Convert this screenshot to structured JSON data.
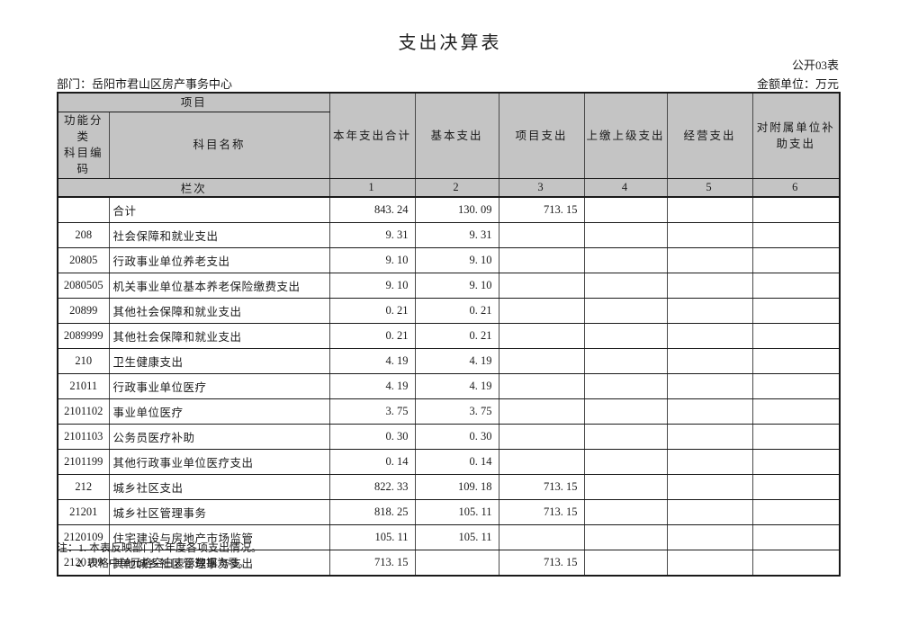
{
  "page": {
    "title": "支出决算表",
    "form_number": "公开03表",
    "department": "部门：岳阳市君山区房产事务中心",
    "unit": "金额单位：万元"
  },
  "table": {
    "group_header": "项目",
    "code_header": "功能分类\n科目编码",
    "name_header": "科目名称",
    "columns": [
      "本年支出合计",
      "基本支出",
      "项目支出",
      "上缴上级支出",
      "经营支出",
      "对附属单位补\n助支出"
    ],
    "lanci_label": "栏次",
    "lanci_numbers": [
      "1",
      "2",
      "3",
      "4",
      "5",
      "6"
    ],
    "rows": [
      {
        "code": "",
        "name": "合计",
        "values": [
          "843. 24",
          "130. 09",
          "713. 15",
          "",
          "",
          ""
        ]
      },
      {
        "code": "208",
        "name": "社会保障和就业支出",
        "values": [
          "9. 31",
          "9. 31",
          "",
          "",
          "",
          ""
        ]
      },
      {
        "code": "20805",
        "name": "行政事业单位养老支出",
        "values": [
          "9. 10",
          "9. 10",
          "",
          "",
          "",
          ""
        ]
      },
      {
        "code": "2080505",
        "name": "机关事业单位基本养老保险缴费支出",
        "values": [
          "9. 10",
          "9. 10",
          "",
          "",
          "",
          ""
        ]
      },
      {
        "code": "20899",
        "name": "其他社会保障和就业支出",
        "values": [
          "0. 21",
          "0. 21",
          "",
          "",
          "",
          ""
        ]
      },
      {
        "code": "2089999",
        "name": "其他社会保障和就业支出",
        "values": [
          "0. 21",
          "0. 21",
          "",
          "",
          "",
          ""
        ]
      },
      {
        "code": "210",
        "name": "卫生健康支出",
        "values": [
          "4. 19",
          "4. 19",
          "",
          "",
          "",
          ""
        ]
      },
      {
        "code": "21011",
        "name": "行政事业单位医疗",
        "values": [
          "4. 19",
          "4. 19",
          "",
          "",
          "",
          ""
        ]
      },
      {
        "code": "2101102",
        "name": "事业单位医疗",
        "values": [
          "3. 75",
          "3. 75",
          "",
          "",
          "",
          ""
        ]
      },
      {
        "code": "2101103",
        "name": "公务员医疗补助",
        "values": [
          "0. 30",
          "0. 30",
          "",
          "",
          "",
          ""
        ]
      },
      {
        "code": "2101199",
        "name": "其他行政事业单位医疗支出",
        "values": [
          "0. 14",
          "0. 14",
          "",
          "",
          "",
          ""
        ]
      },
      {
        "code": "212",
        "name": "城乡社区支出",
        "values": [
          "822. 33",
          "109. 18",
          "713. 15",
          "",
          "",
          ""
        ]
      },
      {
        "code": "21201",
        "name": "城乡社区管理事务",
        "values": [
          "818. 25",
          "105. 11",
          "713. 15",
          "",
          "",
          ""
        ]
      },
      {
        "code": "2120109",
        "name": "住宅建设与房地产市场监管",
        "values": [
          "105. 11",
          "105. 11",
          "",
          "",
          "",
          ""
        ]
      },
      {
        "code": "2120199",
        "name": "其他城乡社区管理事务支出",
        "values": [
          "713. 15",
          "",
          "713. 15",
          "",
          "",
          ""
        ]
      }
    ]
  },
  "notes": {
    "line1": "注：1. 本表反映部门本年度各项支出情况。",
    "line2": "2. 表格中单元格空白表示数据为零。"
  },
  "colors": {
    "header_bg": "#c4c4c4",
    "border": "#1a1a1a",
    "page_bg": "#ffffff"
  }
}
